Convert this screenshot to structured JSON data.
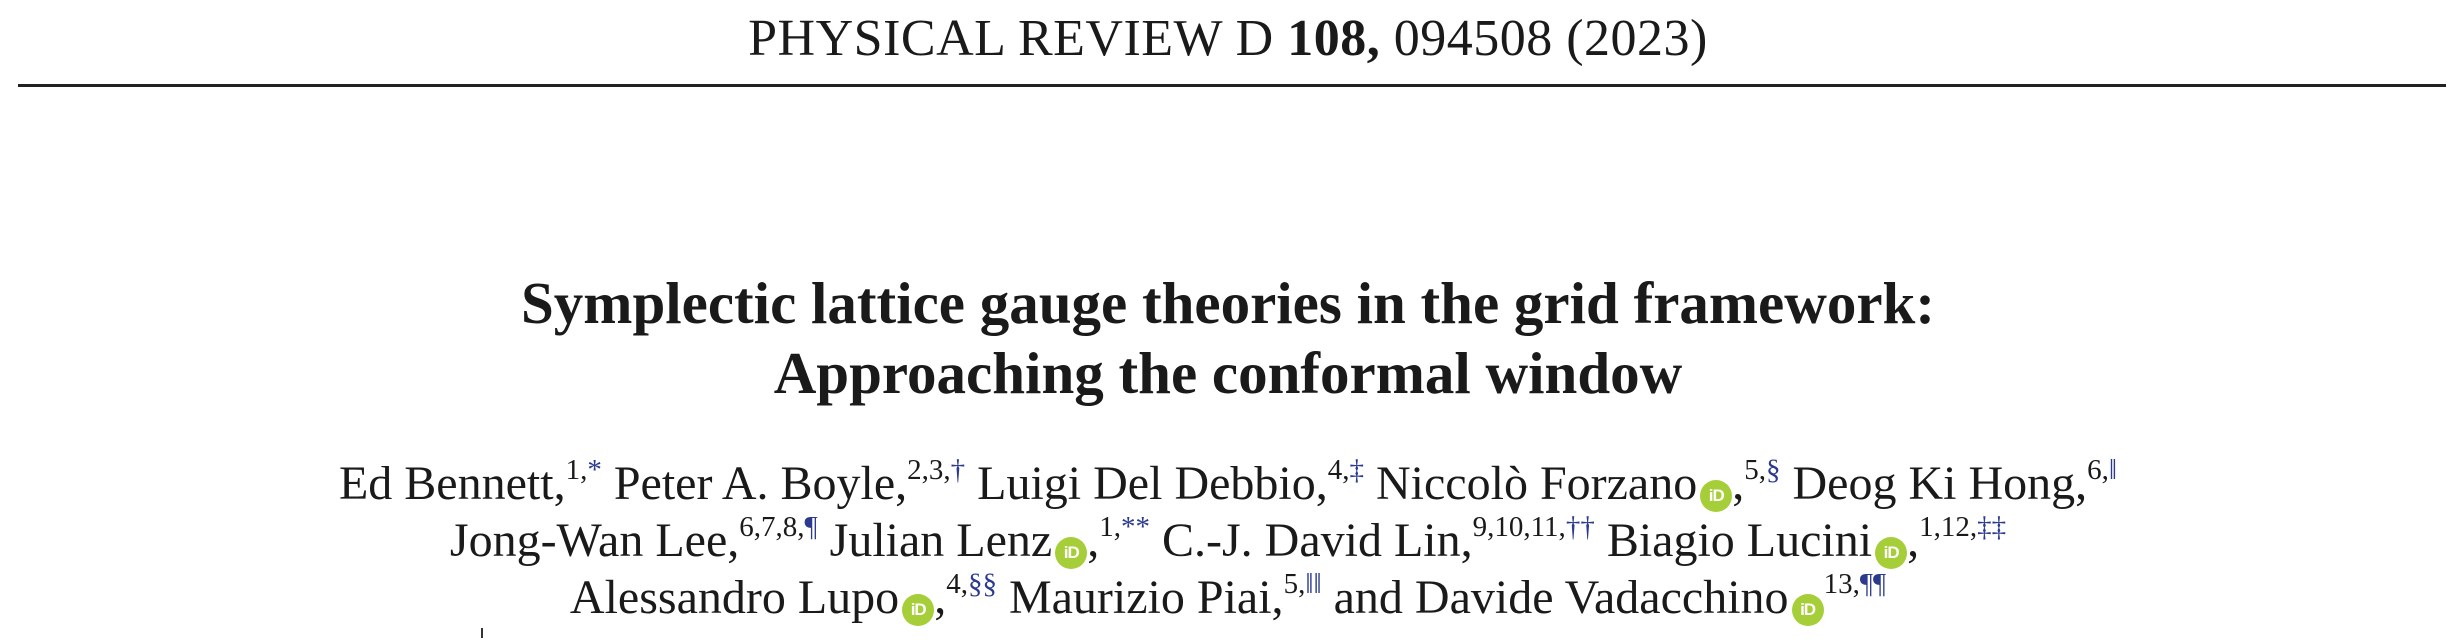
{
  "header": {
    "journal": "PHYSICAL REVIEW D",
    "volume": "108,",
    "article": "094508 (2023)"
  },
  "title": {
    "line1": "Symplectic lattice gauge theories in the grid framework:",
    "line2": "Approaching the conformal window"
  },
  "authors": [
    {
      "name": "Ed Bennett,",
      "aff": "1,",
      "mark": "*",
      "orcid": false
    },
    {
      "name": "Peter A. Boyle,",
      "aff": "2,3,",
      "mark": "†",
      "orcid": false
    },
    {
      "name": "Luigi Del Debbio,",
      "aff": "4,",
      "mark": "‡",
      "orcid": false
    },
    {
      "name": "Niccolò Forzano",
      "sep": ",",
      "aff": "5,",
      "mark": "§",
      "orcid": true
    },
    {
      "name": "Deog Ki Hong,",
      "aff": "6,",
      "mark": "‖",
      "orcid": false
    },
    {
      "name": "Jong-Wan Lee,",
      "aff": "6,7,8,",
      "mark": "¶",
      "orcid": false
    },
    {
      "name": "Julian Lenz",
      "sep": ",",
      "aff": "1,",
      "mark": "**",
      "orcid": true
    },
    {
      "name": "C.-J. David Lin,",
      "aff": "9,10,11,",
      "mark": "††",
      "orcid": false
    },
    {
      "name": "Biagio Lucini",
      "sep": ",",
      "aff": "1,12,",
      "mark": "‡‡",
      "orcid": true
    },
    {
      "name": "Alessandro Lupo",
      "sep": ",",
      "aff": "4,",
      "mark": "§§",
      "orcid": true
    },
    {
      "name": "Maurizio Piai,",
      "aff": "5,",
      "mark": "‖‖",
      "orcid": false
    },
    {
      "name": "and Davide Vadacchino",
      "sep": "",
      "aff": "13,",
      "mark": "¶¶",
      "orcid": true
    }
  ],
  "orcid_label": "iD",
  "colors": {
    "orcid": "#a6ce39",
    "footnote_mark": "#2b3a8f"
  }
}
